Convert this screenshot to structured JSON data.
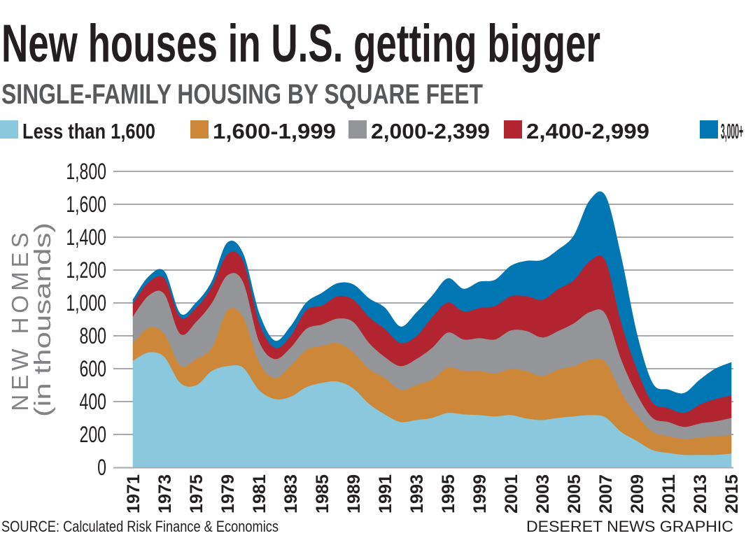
{
  "title": "New houses in U.S. getting bigger",
  "subtitle": "SINGLE-FAMILY HOUSING BY SQUARE FEET",
  "source": "SOURCE: Calculated Risk Finance & Economics",
  "credit": "DESERET NEWS GRAPHIC",
  "chart_data": {
    "type": "area",
    "stacked": true,
    "ylabel": "NEW HOMES",
    "ylabel_sub": "(in thousands)",
    "ylim": [
      0,
      1800
    ],
    "yticks": [
      "0",
      "200",
      "400",
      "600",
      "800",
      "1,000",
      "1,200",
      "1,400",
      "1,600",
      "1,800"
    ],
    "ytick_values": [
      0,
      200,
      400,
      600,
      800,
      1000,
      1200,
      1400,
      1600,
      1800
    ],
    "grid": true,
    "legend_position": "top",
    "xtick_labels": [
      "1971",
      "1973",
      "1975",
      "1979",
      "1981",
      "1983",
      "1985",
      "1989",
      "1991",
      "1993",
      "1995",
      "1999",
      "2001",
      "2003",
      "2005",
      "2007",
      "2009",
      "2011",
      "2013",
      "2015"
    ],
    "x": [
      1971,
      1972,
      1973,
      1974,
      1975,
      1977,
      1979,
      1980,
      1981,
      1982,
      1983,
      1984,
      1985,
      1987,
      1989,
      1990,
      1991,
      1992,
      1993,
      1994,
      1995,
      1997,
      1999,
      2000,
      2001,
      2002,
      2003,
      2004,
      2005,
      2006,
      2007,
      2008,
      2009,
      2010,
      2011,
      2012,
      2013,
      2014,
      2015
    ],
    "series": [
      {
        "name": "Less than 1,600",
        "color": "#8ac8dd",
        "values": [
          650,
          700,
          672,
          515,
          500,
          587,
          617,
          608,
          472,
          417,
          430,
          489,
          515,
          523,
          481,
          387,
          323,
          277,
          289,
          302,
          332,
          323,
          319,
          311,
          319,
          298,
          289,
          302,
          311,
          319,
          306,
          217,
          162,
          106,
          89,
          77,
          77,
          77,
          85
        ]
      },
      {
        "name": "1,600-1,999",
        "color": "#cc8838",
        "values": [
          107,
          150,
          141,
          105,
          160,
          141,
          340,
          307,
          171,
          128,
          187,
          226,
          225,
          234,
          221,
          213,
          222,
          195,
          213,
          234,
          276,
          264,
          268,
          263,
          281,
          289,
          268,
          294,
          306,
          336,
          337,
          243,
          157,
          111,
          102,
          97,
          106,
          114,
          111
        ]
      },
      {
        "name": "2,000-2,399",
        "color": "#939598",
        "values": [
          163,
          197,
          242,
          193,
          225,
          272,
          213,
          213,
          127,
          115,
          111,
          128,
          130,
          149,
          183,
          157,
          127,
          145,
          158,
          192,
          213,
          192,
          200,
          205,
          234,
          243,
          234,
          234,
          260,
          290,
          293,
          200,
          128,
          85,
          86,
          73,
          85,
          90,
          106
        ]
      },
      {
        "name": "2,400-2,999",
        "color": "#b22530",
        "values": [
          80,
          81,
          95,
          102,
          85,
          98,
          128,
          127,
          115,
          68,
          72,
          114,
          115,
          136,
          136,
          158,
          171,
          140,
          140,
          187,
          183,
          170,
          183,
          204,
          208,
          212,
          230,
          255,
          263,
          310,
          324,
          225,
          153,
          94,
          85,
          85,
          115,
          136,
          136
        ]
      },
      {
        "name": "3,000+",
        "color": "#0076b3",
        "values": [
          20,
          32,
          40,
          20,
          30,
          30,
          68,
          43,
          55,
          42,
          55,
          43,
          75,
          77,
          90,
          111,
          127,
          98,
          140,
          127,
          145,
          136,
          158,
          157,
          183,
          213,
          239,
          238,
          269,
          366,
          391,
          396,
          213,
          115,
          110,
          119,
          149,
          183,
          200
        ]
      }
    ]
  }
}
